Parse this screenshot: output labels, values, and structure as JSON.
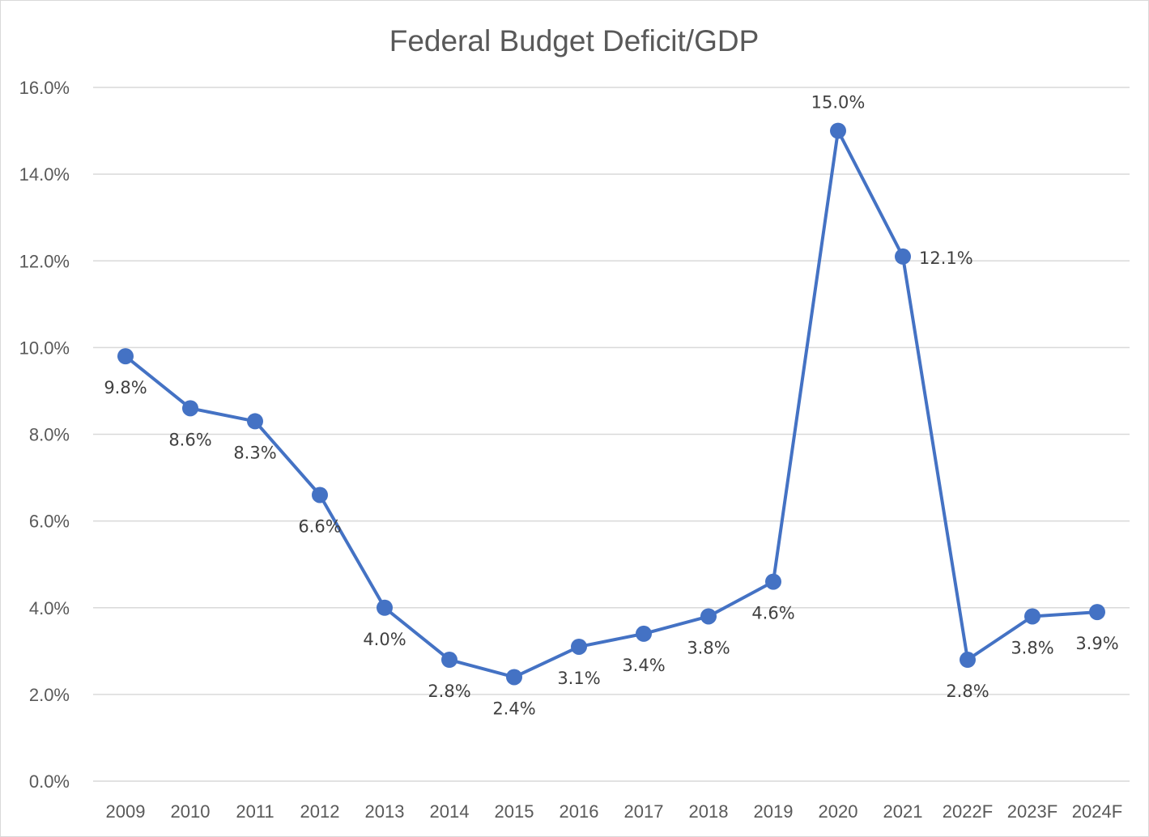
{
  "chart_data": {
    "type": "line",
    "title": "Federal Budget Deficit/GDP",
    "xlabel": "",
    "ylabel": "",
    "categories": [
      "2009",
      "2010",
      "2011",
      "2012",
      "2013",
      "2014",
      "2015",
      "2016",
      "2017",
      "2018",
      "2019",
      "2020",
      "2021",
      "2022F",
      "2023F",
      "2024F"
    ],
    "series": [
      {
        "name": "Federal Budget Deficit/GDP",
        "color": "#4472c4",
        "values": [
          9.8,
          8.6,
          8.3,
          6.6,
          4.0,
          2.8,
          2.4,
          3.1,
          3.4,
          3.8,
          4.6,
          15.0,
          12.1,
          2.8,
          3.8,
          3.9
        ],
        "data_labels": [
          "9.8%",
          "8.6%",
          "8.3%",
          "6.6%",
          "4.0%",
          "2.8%",
          "2.4%",
          "3.1%",
          "3.4%",
          "3.8%",
          "4.6%",
          "15.0%",
          "12.1%",
          "2.8%",
          "3.8%",
          "3.9%"
        ],
        "label_positions": [
          "below",
          "below",
          "below",
          "below",
          "below",
          "below",
          "below",
          "below",
          "below",
          "below",
          "below",
          "above",
          "right",
          "below",
          "below",
          "below"
        ]
      }
    ],
    "ylim": [
      0,
      16
    ],
    "yticks": [
      0,
      2,
      4,
      6,
      8,
      10,
      12,
      14,
      16
    ],
    "ytick_labels": [
      "0.0%",
      "2.0%",
      "4.0%",
      "6.0%",
      "8.0%",
      "10.0%",
      "12.0%",
      "14.0%",
      "16.0%"
    ],
    "grid": true,
    "legend": "none"
  }
}
